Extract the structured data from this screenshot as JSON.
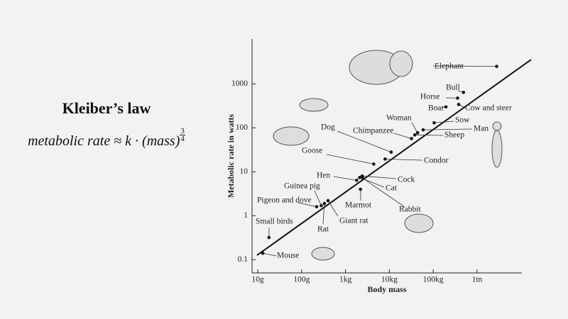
{
  "title": "Kleiber’s law",
  "formula": {
    "text": "metabolic rate ≈ k · (mass)",
    "exponent_numerator": "3",
    "exponent_denominator": "4"
  },
  "chart_data": {
    "type": "scatter",
    "log_x": true,
    "log_y": true,
    "xlabel": "Body mass",
    "ylabel": "Metabolic rate in watts",
    "xlim": [
      7.4,
      10500000
    ],
    "ylim": [
      0.05,
      10500
    ],
    "xticks": [
      {
        "value": 10,
        "label": "10g"
      },
      {
        "value": 100,
        "label": "100g"
      },
      {
        "value": 1000,
        "label": "1kg"
      },
      {
        "value": 10000,
        "label": "10kg"
      },
      {
        "value": 100000,
        "label": "100kg"
      },
      {
        "value": 1000000,
        "label": "1tn"
      }
    ],
    "yticks": [
      0.1,
      1,
      10,
      100,
      1000
    ],
    "color": "#111111",
    "points": [
      {
        "name": "Mouse",
        "x": 13,
        "y": 0.14
      },
      {
        "name": "Small birds",
        "x": 18,
        "y": 0.32
      },
      {
        "name": "Pigeon and dove",
        "x": 220,
        "y": 1.6
      },
      {
        "name": "Guinea pig",
        "x": 280,
        "y": 1.7
      },
      {
        "name": "Rat",
        "x": 330,
        "y": 1.9
      },
      {
        "name": "Giant rat",
        "x": 400,
        "y": 2.2
      },
      {
        "name": "Hen",
        "x": 1800,
        "y": 6.4
      },
      {
        "name": "Cat",
        "x": 2100,
        "y": 7.4
      },
      {
        "name": "Cock",
        "x": 2400,
        "y": 8
      },
      {
        "name": "Rabbit",
        "x": 2500,
        "y": 7.1
      },
      {
        "name": "Marmot",
        "x": 2200,
        "y": 4
      },
      {
        "name": "Goose",
        "x": 4400,
        "y": 15
      },
      {
        "name": "Condor",
        "x": 8000,
        "y": 19.5
      },
      {
        "name": "Dog",
        "x": 11000,
        "y": 28
      },
      {
        "name": "Chimpanzee",
        "x": 32000,
        "y": 57
      },
      {
        "name": "Sheep",
        "x": 38000,
        "y": 69
      },
      {
        "name": "Woman",
        "x": 44000,
        "y": 77
      },
      {
        "name": "Man",
        "x": 59000,
        "y": 90
      },
      {
        "name": "Sow",
        "x": 105000,
        "y": 130
      },
      {
        "name": "Boar",
        "x": 195000,
        "y": 300
      },
      {
        "name": "Cow and steer",
        "x": 380000,
        "y": 340
      },
      {
        "name": "Horse",
        "x": 360000,
        "y": 475
      },
      {
        "name": "Bull",
        "x": 490000,
        "y": 640
      },
      {
        "name": "Elephant",
        "x": 2800000,
        "y": 2500
      }
    ],
    "fit": {
      "x": [
        9.6,
        17000000
      ],
      "y": [
        0.126,
        3550
      ]
    }
  }
}
